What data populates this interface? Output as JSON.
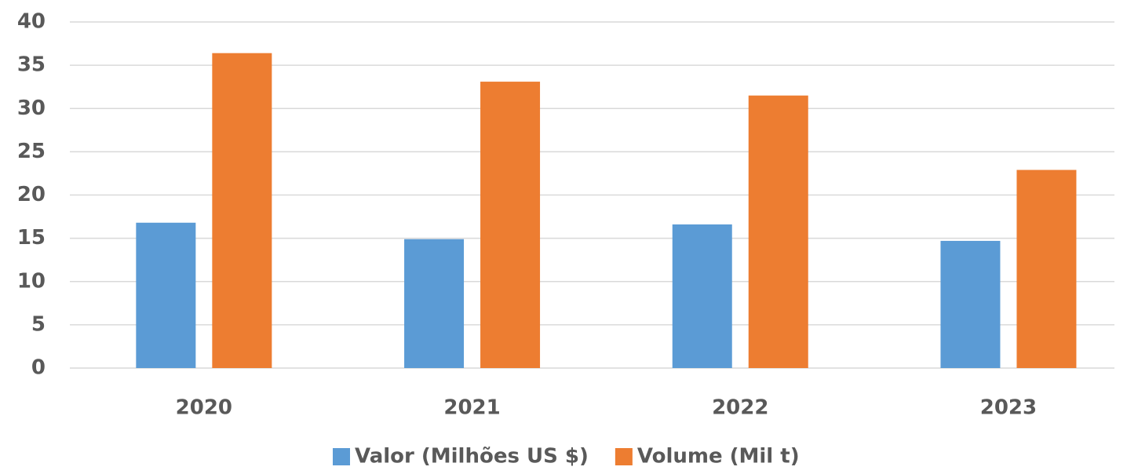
{
  "chart_data": {
    "type": "bar",
    "categories": [
      "2020",
      "2021",
      "2022",
      "2023"
    ],
    "series": [
      {
        "name": "Valor (Milhões US $)",
        "color": "#5b9bd5",
        "values": [
          16.8,
          14.9,
          16.6,
          14.7
        ]
      },
      {
        "name": "Volume (Mil t)",
        "color": "#ed7d31",
        "values": [
          36.4,
          33.1,
          31.5,
          22.9
        ]
      }
    ],
    "ylim": [
      0,
      40
    ],
    "yticks": [
      0,
      5,
      10,
      15,
      20,
      25,
      30,
      35,
      40
    ],
    "grid": true,
    "legend": "bottom"
  }
}
